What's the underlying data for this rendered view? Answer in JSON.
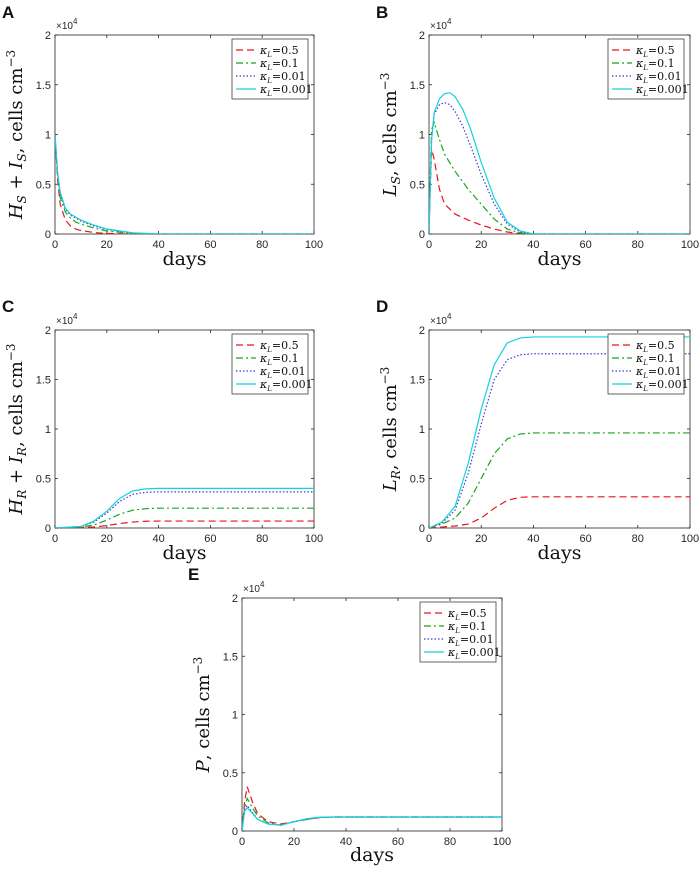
{
  "figure": {
    "charts": [
      {
        "id": "A",
        "panel_label": "A",
        "ylabel": "H_S + I_S, cells cm^-3",
        "ylabel_main": "H",
        "ylabel_sub1": "S",
        "ylabel_mid": " + I",
        "ylabel_sub2": "S",
        "ylabel_units": ", cells cm",
        "ylabel_exp": "−3",
        "xlabel": "days"
      },
      {
        "id": "B",
        "panel_label": "B",
        "ylabel": "L_S, cells cm^-3",
        "ylabel_main": "L",
        "ylabel_sub1": "S",
        "ylabel_mid": "",
        "ylabel_sub2": "",
        "ylabel_units": ", cells cm",
        "ylabel_exp": "−3",
        "xlabel": "days"
      },
      {
        "id": "C",
        "panel_label": "C",
        "ylabel": "H_R + I_R, cells cm^-3",
        "ylabel_main": "H",
        "ylabel_sub1": "R",
        "ylabel_mid": " + I",
        "ylabel_sub2": "R",
        "ylabel_units": ", cells cm",
        "ylabel_exp": "−3",
        "xlabel": "days"
      },
      {
        "id": "D",
        "panel_label": "D",
        "ylabel": "L_R, cells cm^-3",
        "ylabel_main": "L",
        "ylabel_sub1": "R",
        "ylabel_mid": "",
        "ylabel_sub2": "",
        "ylabel_units": ", cells cm",
        "ylabel_exp": "−3",
        "xlabel": "days"
      },
      {
        "id": "E",
        "panel_label": "E",
        "ylabel": "P, cells cm^-3",
        "ylabel_main": "P",
        "ylabel_sub1": "",
        "ylabel_mid": "",
        "ylabel_sub2": "",
        "ylabel_units": ", cells cm",
        "ylabel_exp": "−3",
        "xlabel": "days"
      }
    ]
  },
  "chart_data": [
    {
      "panel": "A",
      "type": "line",
      "xlabel": "days",
      "ylabel": "H_S + I_S, cells cm^-3",
      "xlim": [
        0,
        100
      ],
      "ylim": [
        0,
        2
      ],
      "xticks": [
        "0",
        "20",
        "40",
        "60",
        "80",
        "100"
      ],
      "yticks": [
        "0",
        "0.5",
        "1",
        "1.5",
        "2"
      ],
      "y_multiplier": "×10",
      "y_multiplier_exp": "4",
      "legend_position": "top-right",
      "series": [
        {
          "name": "κ_L =0.5",
          "legend_kappa": "κ",
          "legend_sub": "L",
          "legend_val": "=0.5",
          "color": "#e8141f",
          "dash": "7,4",
          "x": [
            0,
            1,
            2,
            4,
            6,
            8,
            10,
            15,
            20,
            30,
            100
          ],
          "y": [
            1.0,
            0.55,
            0.3,
            0.14,
            0.08,
            0.05,
            0.035,
            0.015,
            0.005,
            0.0,
            0.0
          ]
        },
        {
          "name": "κ_L =0.1",
          "legend_kappa": "κ",
          "legend_sub": "L",
          "legend_val": "=0.1",
          "color": "#1aa51a",
          "dash": "7,3,2,3",
          "x": [
            0,
            1,
            2,
            4,
            6,
            8,
            10,
            15,
            20,
            30,
            40,
            100
          ],
          "y": [
            1.0,
            0.6,
            0.37,
            0.22,
            0.16,
            0.12,
            0.1,
            0.06,
            0.03,
            0.005,
            0.0,
            0.0
          ]
        },
        {
          "name": "κ_L =0.01",
          "legend_kappa": "κ",
          "legend_sub": "L",
          "legend_val": "=0.01",
          "color": "#3b3bd6",
          "dash": "1.5,2",
          "x": [
            0,
            1,
            2,
            4,
            6,
            8,
            10,
            15,
            20,
            30,
            40,
            100
          ],
          "y": [
            1.0,
            0.62,
            0.4,
            0.25,
            0.19,
            0.16,
            0.13,
            0.08,
            0.045,
            0.01,
            0.0,
            0.0
          ]
        },
        {
          "name": "κ_L =0.001",
          "legend_kappa": "κ",
          "legend_sub": "L",
          "legend_val": "=0.001",
          "color": "#14d2dc",
          "dash": "",
          "x": [
            0,
            1,
            2,
            4,
            6,
            8,
            10,
            15,
            20,
            30,
            40,
            100
          ],
          "y": [
            1.0,
            0.62,
            0.42,
            0.26,
            0.2,
            0.17,
            0.14,
            0.09,
            0.05,
            0.012,
            0.0,
            0.0
          ]
        }
      ]
    },
    {
      "panel": "B",
      "type": "line",
      "xlabel": "days",
      "ylabel": "L_S, cells cm^-3",
      "xlim": [
        0,
        100
      ],
      "ylim": [
        0,
        2
      ],
      "xticks": [
        "0",
        "20",
        "40",
        "60",
        "80",
        "100"
      ],
      "yticks": [
        "0",
        "0.5",
        "1",
        "1.5",
        "2"
      ],
      "y_multiplier": "×10",
      "y_multiplier_exp": "4",
      "legend_position": "top-right",
      "series": [
        {
          "name": "κ_L =0.5",
          "legend_kappa": "κ",
          "legend_sub": "L",
          "legend_val": "=0.5",
          "color": "#e8141f",
          "dash": "7,4",
          "x": [
            0,
            0.5,
            1,
            2,
            4,
            6,
            10,
            15,
            20,
            25,
            30,
            35,
            40,
            100
          ],
          "y": [
            0.0,
            0.5,
            0.85,
            0.75,
            0.45,
            0.3,
            0.2,
            0.14,
            0.09,
            0.05,
            0.02,
            0.005,
            0.0,
            0.0
          ]
        },
        {
          "name": "κ_L =0.1",
          "legend_kappa": "κ",
          "legend_sub": "L",
          "legend_val": "=0.1",
          "color": "#1aa51a",
          "dash": "7,3,2,3",
          "x": [
            0,
            0.5,
            1,
            2,
            4,
            6,
            10,
            15,
            20,
            25,
            30,
            35,
            40,
            100
          ],
          "y": [
            0.0,
            0.6,
            1.05,
            1.12,
            0.95,
            0.8,
            0.63,
            0.45,
            0.3,
            0.15,
            0.05,
            0.01,
            0.0,
            0.0
          ]
        },
        {
          "name": "κ_L =0.01",
          "legend_kappa": "κ",
          "legend_sub": "L",
          "legend_val": "=0.01",
          "color": "#3b3bd6",
          "dash": "1.5,2",
          "x": [
            0,
            0.5,
            1,
            2,
            4,
            6,
            8,
            10,
            13,
            16,
            20,
            25,
            30,
            35,
            40,
            100
          ],
          "y": [
            0.0,
            0.5,
            0.95,
            1.2,
            1.3,
            1.32,
            1.3,
            1.23,
            1.08,
            0.88,
            0.6,
            0.3,
            0.1,
            0.02,
            0.0,
            0.0
          ]
        },
        {
          "name": "κ_L =0.001",
          "legend_kappa": "κ",
          "legend_sub": "L",
          "legend_val": "=0.001",
          "color": "#14d2dc",
          "dash": "",
          "x": [
            0,
            0.5,
            1,
            2,
            4,
            6,
            8,
            10,
            13,
            16,
            20,
            25,
            30,
            35,
            40,
            100
          ],
          "y": [
            0.0,
            0.5,
            0.95,
            1.22,
            1.36,
            1.41,
            1.42,
            1.38,
            1.25,
            1.05,
            0.72,
            0.36,
            0.12,
            0.03,
            0.0,
            0.0
          ]
        }
      ]
    },
    {
      "panel": "C",
      "type": "line",
      "xlabel": "days",
      "ylabel": "H_R + I_R, cells cm^-3",
      "xlim": [
        0,
        100
      ],
      "ylim": [
        0,
        2
      ],
      "xticks": [
        "0",
        "20",
        "40",
        "60",
        "80",
        "100"
      ],
      "yticks": [
        "0",
        "0.5",
        "1",
        "1.5",
        "2"
      ],
      "y_multiplier": "×10",
      "y_multiplier_exp": "4",
      "legend_position": "top-right",
      "series": [
        {
          "name": "κ_L =0.5",
          "legend_kappa": "κ",
          "legend_sub": "L",
          "legend_val": "=0.5",
          "color": "#e8141f",
          "dash": "7,4",
          "x": [
            0,
            10,
            15,
            20,
            25,
            30,
            35,
            40,
            100
          ],
          "y": [
            0.0,
            0.005,
            0.01,
            0.025,
            0.045,
            0.06,
            0.068,
            0.07,
            0.07
          ]
        },
        {
          "name": "κ_L =0.1",
          "legend_kappa": "κ",
          "legend_sub": "L",
          "legend_val": "=0.1",
          "color": "#1aa51a",
          "dash": "7,3,2,3",
          "x": [
            0,
            10,
            15,
            20,
            25,
            30,
            35,
            40,
            100
          ],
          "y": [
            0.0,
            0.01,
            0.03,
            0.08,
            0.14,
            0.18,
            0.195,
            0.2,
            0.2
          ]
        },
        {
          "name": "κ_L =0.01",
          "legend_kappa": "κ",
          "legend_sub": "L",
          "legend_val": "=0.01",
          "color": "#3b3bd6",
          "dash": "1.5,2",
          "x": [
            0,
            10,
            15,
            20,
            25,
            30,
            35,
            40,
            100
          ],
          "y": [
            0.0,
            0.015,
            0.06,
            0.15,
            0.27,
            0.34,
            0.36,
            0.365,
            0.365
          ]
        },
        {
          "name": "κ_L =0.001",
          "legend_kappa": "κ",
          "legend_sub": "L",
          "legend_val": "=0.001",
          "color": "#14d2dc",
          "dash": "",
          "x": [
            0,
            10,
            15,
            20,
            25,
            30,
            35,
            40,
            100
          ],
          "y": [
            0.0,
            0.015,
            0.07,
            0.17,
            0.3,
            0.375,
            0.395,
            0.4,
            0.4
          ]
        }
      ]
    },
    {
      "panel": "D",
      "type": "line",
      "xlabel": "days",
      "ylabel": "L_R, cells cm^-3",
      "xlim": [
        0,
        100
      ],
      "ylim": [
        0,
        2
      ],
      "xticks": [
        "0",
        "20",
        "40",
        "60",
        "80",
        "100"
      ],
      "yticks": [
        "0",
        "0.5",
        "1",
        "1.5",
        "2"
      ],
      "y_multiplier": "×10",
      "y_multiplier_exp": "4",
      "legend_position": "top-right",
      "series": [
        {
          "name": "κ_L =0.5",
          "legend_kappa": "κ",
          "legend_sub": "L",
          "legend_val": "=0.5",
          "color": "#e8141f",
          "dash": "7,4",
          "x": [
            0,
            10,
            15,
            20,
            25,
            30,
            35,
            40,
            100
          ],
          "y": [
            0.0,
            0.02,
            0.04,
            0.1,
            0.2,
            0.28,
            0.31,
            0.315,
            0.315
          ]
        },
        {
          "name": "κ_L =0.1",
          "legend_kappa": "κ",
          "legend_sub": "L",
          "legend_val": "=0.1",
          "color": "#1aa51a",
          "dash": "7,3,2,3",
          "x": [
            0,
            5,
            10,
            15,
            20,
            25,
            30,
            35,
            40,
            100
          ],
          "y": [
            0.0,
            0.04,
            0.1,
            0.25,
            0.5,
            0.75,
            0.9,
            0.95,
            0.96,
            0.96
          ]
        },
        {
          "name": "κ_L =0.01",
          "legend_kappa": "κ",
          "legend_sub": "L",
          "legend_val": "=0.01",
          "color": "#3b3bd6",
          "dash": "1.5,2",
          "x": [
            0,
            5,
            10,
            15,
            20,
            25,
            30,
            35,
            40,
            100
          ],
          "y": [
            0.0,
            0.05,
            0.18,
            0.55,
            1.05,
            1.5,
            1.7,
            1.75,
            1.76,
            1.76
          ]
        },
        {
          "name": "κ_L =0.001",
          "legend_kappa": "κ",
          "legend_sub": "L",
          "legend_val": "=0.001",
          "color": "#14d2dc",
          "dash": "",
          "x": [
            0,
            5,
            10,
            15,
            20,
            25,
            30,
            35,
            40,
            100
          ],
          "y": [
            0.0,
            0.06,
            0.22,
            0.65,
            1.2,
            1.65,
            1.87,
            1.92,
            1.93,
            1.93
          ]
        }
      ]
    },
    {
      "panel": "E",
      "type": "line",
      "xlabel": "days",
      "ylabel": "P, cells cm^-3",
      "xlim": [
        0,
        100
      ],
      "ylim": [
        0,
        2
      ],
      "xticks": [
        "0",
        "20",
        "40",
        "60",
        "80",
        "100"
      ],
      "yticks": [
        "0",
        "0.5",
        "1",
        "1.5",
        "2"
      ],
      "y_multiplier": "×10",
      "y_multiplier_exp": "4",
      "legend_position": "top-right",
      "series": [
        {
          "name": "κ_L =0.5",
          "legend_kappa": "κ",
          "legend_sub": "L",
          "legend_val": "=0.5",
          "color": "#e8141f",
          "dash": "7,4",
          "x": [
            0,
            1,
            2,
            4,
            6,
            10,
            15,
            20,
            25,
            30,
            35,
            40,
            100
          ],
          "y": [
            0.0,
            0.25,
            0.38,
            0.25,
            0.15,
            0.08,
            0.06,
            0.08,
            0.1,
            0.115,
            0.12,
            0.12,
            0.12
          ]
        },
        {
          "name": "κ_L =0.1",
          "legend_kappa": "κ",
          "legend_sub": "L",
          "legend_val": "=0.1",
          "color": "#1aa51a",
          "dash": "7,3,2,3",
          "x": [
            0,
            1,
            2,
            4,
            6,
            10,
            15,
            20,
            25,
            30,
            35,
            40,
            100
          ],
          "y": [
            0.0,
            0.2,
            0.28,
            0.2,
            0.13,
            0.07,
            0.05,
            0.08,
            0.1,
            0.115,
            0.12,
            0.12,
            0.12
          ]
        },
        {
          "name": "κ_L =0.01",
          "legend_kappa": "κ",
          "legend_sub": "L",
          "legend_val": "=0.01",
          "color": "#3b3bd6",
          "dash": "1.5,2",
          "x": [
            0,
            1,
            2,
            4,
            6,
            10,
            15,
            20,
            25,
            30,
            35,
            40,
            100
          ],
          "y": [
            0.0,
            0.18,
            0.22,
            0.16,
            0.1,
            0.06,
            0.05,
            0.08,
            0.105,
            0.118,
            0.12,
            0.12,
            0.12
          ]
        },
        {
          "name": "κ_L =0.001",
          "legend_kappa": "κ",
          "legend_sub": "L",
          "legend_val": "=0.001",
          "color": "#14d2dc",
          "dash": "",
          "x": [
            0,
            1,
            2,
            4,
            6,
            10,
            15,
            20,
            25,
            30,
            35,
            40,
            100
          ],
          "y": [
            0.0,
            0.17,
            0.2,
            0.15,
            0.1,
            0.06,
            0.05,
            0.08,
            0.105,
            0.118,
            0.12,
            0.12,
            0.12
          ]
        }
      ]
    }
  ]
}
